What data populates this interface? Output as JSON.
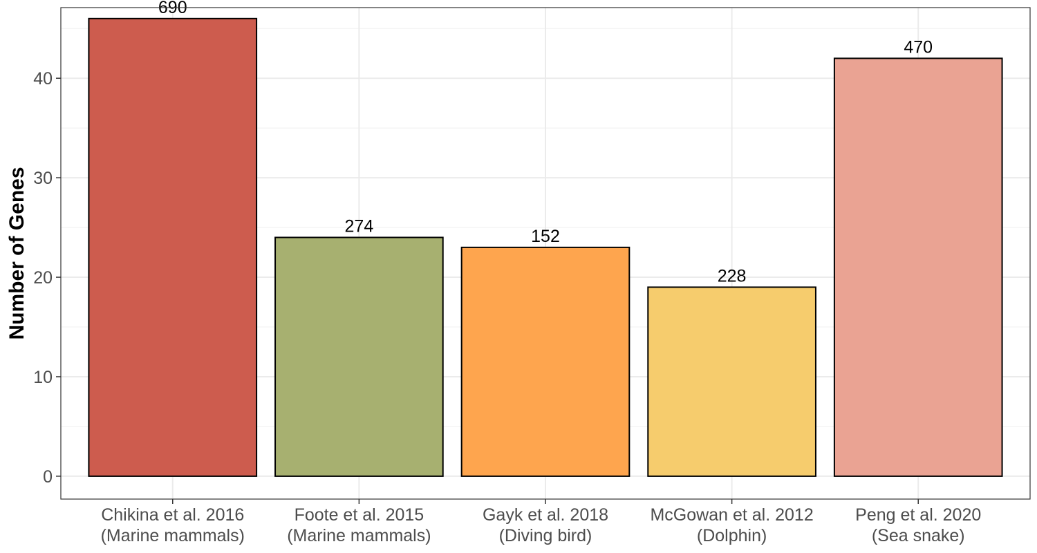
{
  "chart_data": {
    "type": "bar",
    "title": "",
    "xlabel": "",
    "ylabel": "Number of Genes",
    "ylim": [
      -2.3,
      47.1
    ],
    "yticks": [
      0,
      10,
      20,
      30,
      40
    ],
    "grid": true,
    "legend": "none",
    "categories": [
      {
        "line1": "Chikina et al. 2016",
        "line2": "(Marine mammals)"
      },
      {
        "line1": "Foote et al. 2015",
        "line2": "(Marine mammals)"
      },
      {
        "line1": "Gayk et al. 2018",
        "line2": "(Diving bird)"
      },
      {
        "line1": "McGowan et al. 2012",
        "line2": "(Dolphin)"
      },
      {
        "line1": "Peng et al. 2020",
        "line2": "(Sea snake)"
      }
    ],
    "values": [
      46,
      24,
      23,
      19,
      42
    ],
    "data_labels": [
      "690",
      "274",
      "152",
      "228",
      "470"
    ],
    "colors": [
      "#cd5c4e",
      "#a7b070",
      "#fea54e",
      "#f6cc6d",
      "#eaa393"
    ]
  }
}
